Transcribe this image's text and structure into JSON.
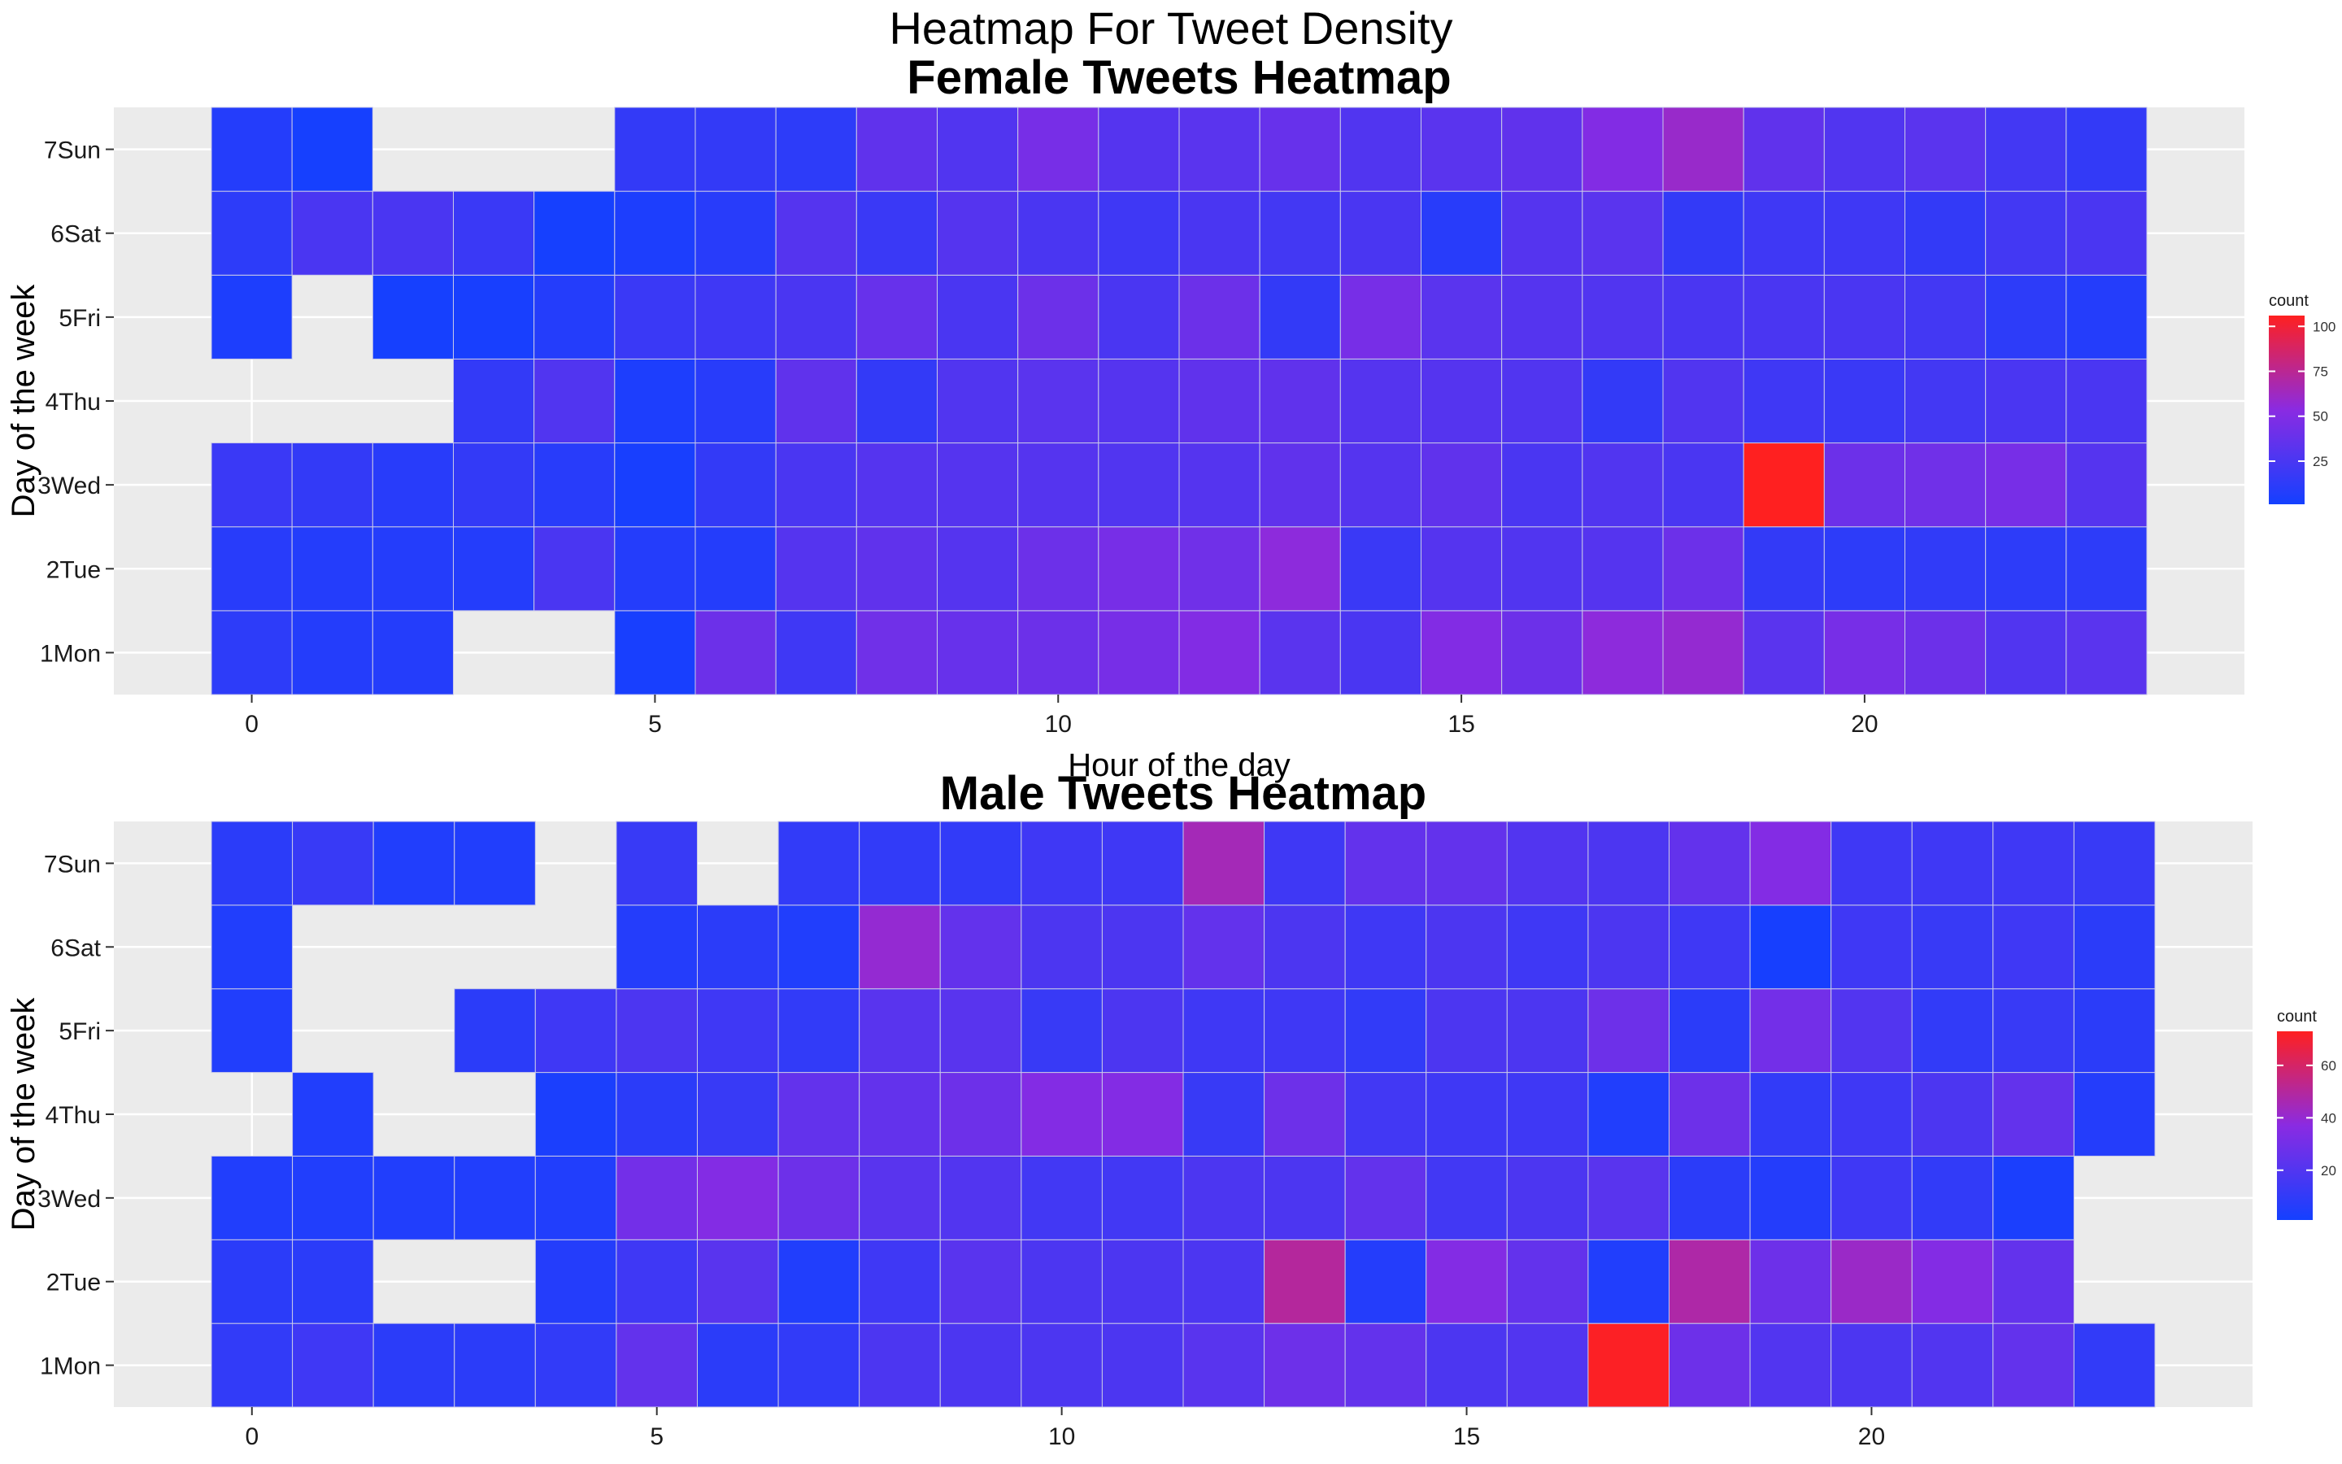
{
  "page_title": "Heatmap For Tweet Density",
  "colors": {
    "low": "#1440FF",
    "mid": "#8A2BE2",
    "high": "#FF2020",
    "panel_bg": "#EBEBEB",
    "grid": "#FFFFFF"
  },
  "chart_data": [
    {
      "type": "heatmap",
      "title": "Female Tweets Heatmap",
      "xlabel": "Hour of the day",
      "ylabel": "Day of the week",
      "x_ticks": [
        0,
        5,
        10,
        15,
        20
      ],
      "x_range": [
        -0.5,
        23.5
      ],
      "rows": [
        "1Mon",
        "2Tue",
        "3Wed",
        "4Thu",
        "5Fri",
        "6Sat",
        "7Sun"
      ],
      "hours": [
        0,
        1,
        2,
        3,
        4,
        5,
        6,
        7,
        8,
        9,
        10,
        11,
        12,
        13,
        14,
        15,
        16,
        17,
        18,
        19,
        20,
        21,
        22,
        23
      ],
      "legend": {
        "title": "count",
        "ticks": [
          25,
          50,
          75,
          100
        ],
        "min": 1,
        "max": 106,
        "position": "right"
      },
      "grid": true,
      "values": {
        "1Mon": [
          12,
          8,
          8,
          null,
          null,
          3,
          40,
          20,
          42,
          38,
          40,
          45,
          50,
          32,
          25,
          50,
          40,
          55,
          58,
          32,
          45,
          40,
          28,
          32
        ],
        "2Tue": [
          10,
          8,
          8,
          8,
          25,
          8,
          8,
          30,
          35,
          30,
          40,
          45,
          42,
          55,
          18,
          30,
          28,
          30,
          40,
          15,
          12,
          14,
          12,
          12
        ],
        "3Wed": [
          18,
          15,
          10,
          15,
          10,
          3,
          15,
          25,
          30,
          30,
          30,
          28,
          30,
          35,
          30,
          35,
          25,
          28,
          25,
          106,
          40,
          42,
          45,
          30
        ],
        "4Thu": [
          null,
          null,
          null,
          15,
          28,
          5,
          10,
          35,
          15,
          28,
          32,
          30,
          35,
          35,
          30,
          30,
          28,
          15,
          28,
          20,
          18,
          22,
          25,
          25
        ],
        "5Fri": [
          5,
          null,
          2,
          3,
          8,
          18,
          20,
          25,
          38,
          25,
          40,
          25,
          40,
          15,
          45,
          32,
          30,
          28,
          25,
          25,
          25,
          22,
          12,
          8
        ],
        "6Sat": [
          12,
          25,
          25,
          18,
          2,
          5,
          10,
          30,
          18,
          30,
          25,
          20,
          25,
          22,
          25,
          10,
          30,
          32,
          15,
          20,
          20,
          15,
          22,
          25
        ],
        "7Sun": [
          8,
          2,
          null,
          null,
          null,
          15,
          15,
          12,
          35,
          28,
          45,
          30,
          32,
          38,
          28,
          32,
          35,
          50,
          60,
          35,
          28,
          32,
          22,
          15
        ]
      }
    },
    {
      "type": "heatmap",
      "title": "Male Tweets Heatmap",
      "xlabel": "Hour of the day",
      "ylabel": "Day of the week",
      "x_ticks": [
        0,
        5,
        10,
        15,
        20
      ],
      "x_range": [
        -0.5,
        23.5
      ],
      "rows": [
        "1Mon",
        "2Tue",
        "3Wed",
        "4Thu",
        "5Fri",
        "6Sat",
        "7Sun"
      ],
      "hours": [
        0,
        1,
        2,
        3,
        4,
        5,
        6,
        7,
        8,
        9,
        10,
        11,
        12,
        13,
        14,
        15,
        16,
        17,
        18,
        19,
        20,
        21,
        22,
        23
      ],
      "legend": {
        "title": "count",
        "ticks": [
          20,
          40,
          60
        ],
        "min": 1,
        "max": 73,
        "position": "right"
      },
      "grid": true,
      "values": {
        "1Mon": [
          10,
          14,
          8,
          8,
          10,
          25,
          8,
          10,
          18,
          18,
          18,
          18,
          22,
          28,
          25,
          18,
          20,
          72,
          28,
          20,
          18,
          20,
          25,
          10
        ],
        "2Tue": [
          8,
          8,
          null,
          null,
          6,
          14,
          22,
          5,
          14,
          22,
          18,
          18,
          18,
          50,
          6,
          35,
          25,
          5,
          48,
          28,
          42,
          35,
          25,
          null
        ],
        "3Wed": [
          5,
          5,
          5,
          5,
          5,
          30,
          35,
          28,
          22,
          20,
          15,
          15,
          18,
          18,
          25,
          15,
          18,
          22,
          8,
          6,
          14,
          10,
          3,
          null
        ],
        "4Thu": [
          null,
          5,
          null,
          null,
          3,
          8,
          12,
          25,
          25,
          28,
          35,
          35,
          12,
          28,
          15,
          14,
          14,
          5,
          28,
          10,
          14,
          18,
          25,
          6
        ],
        "5Fri": [
          5,
          null,
          null,
          8,
          14,
          18,
          14,
          10,
          22,
          22,
          12,
          18,
          14,
          14,
          10,
          18,
          18,
          28,
          8,
          30,
          20,
          10,
          12,
          8
        ],
        "6Sat": [
          5,
          null,
          null,
          null,
          null,
          6,
          8,
          5,
          40,
          25,
          18,
          18,
          25,
          18,
          14,
          18,
          14,
          18,
          14,
          2,
          14,
          12,
          14,
          8
        ],
        "7Sun": [
          8,
          12,
          5,
          5,
          null,
          12,
          null,
          10,
          10,
          10,
          14,
          14,
          45,
          14,
          25,
          25,
          20,
          18,
          25,
          35,
          14,
          14,
          14,
          12
        ]
      }
    }
  ]
}
